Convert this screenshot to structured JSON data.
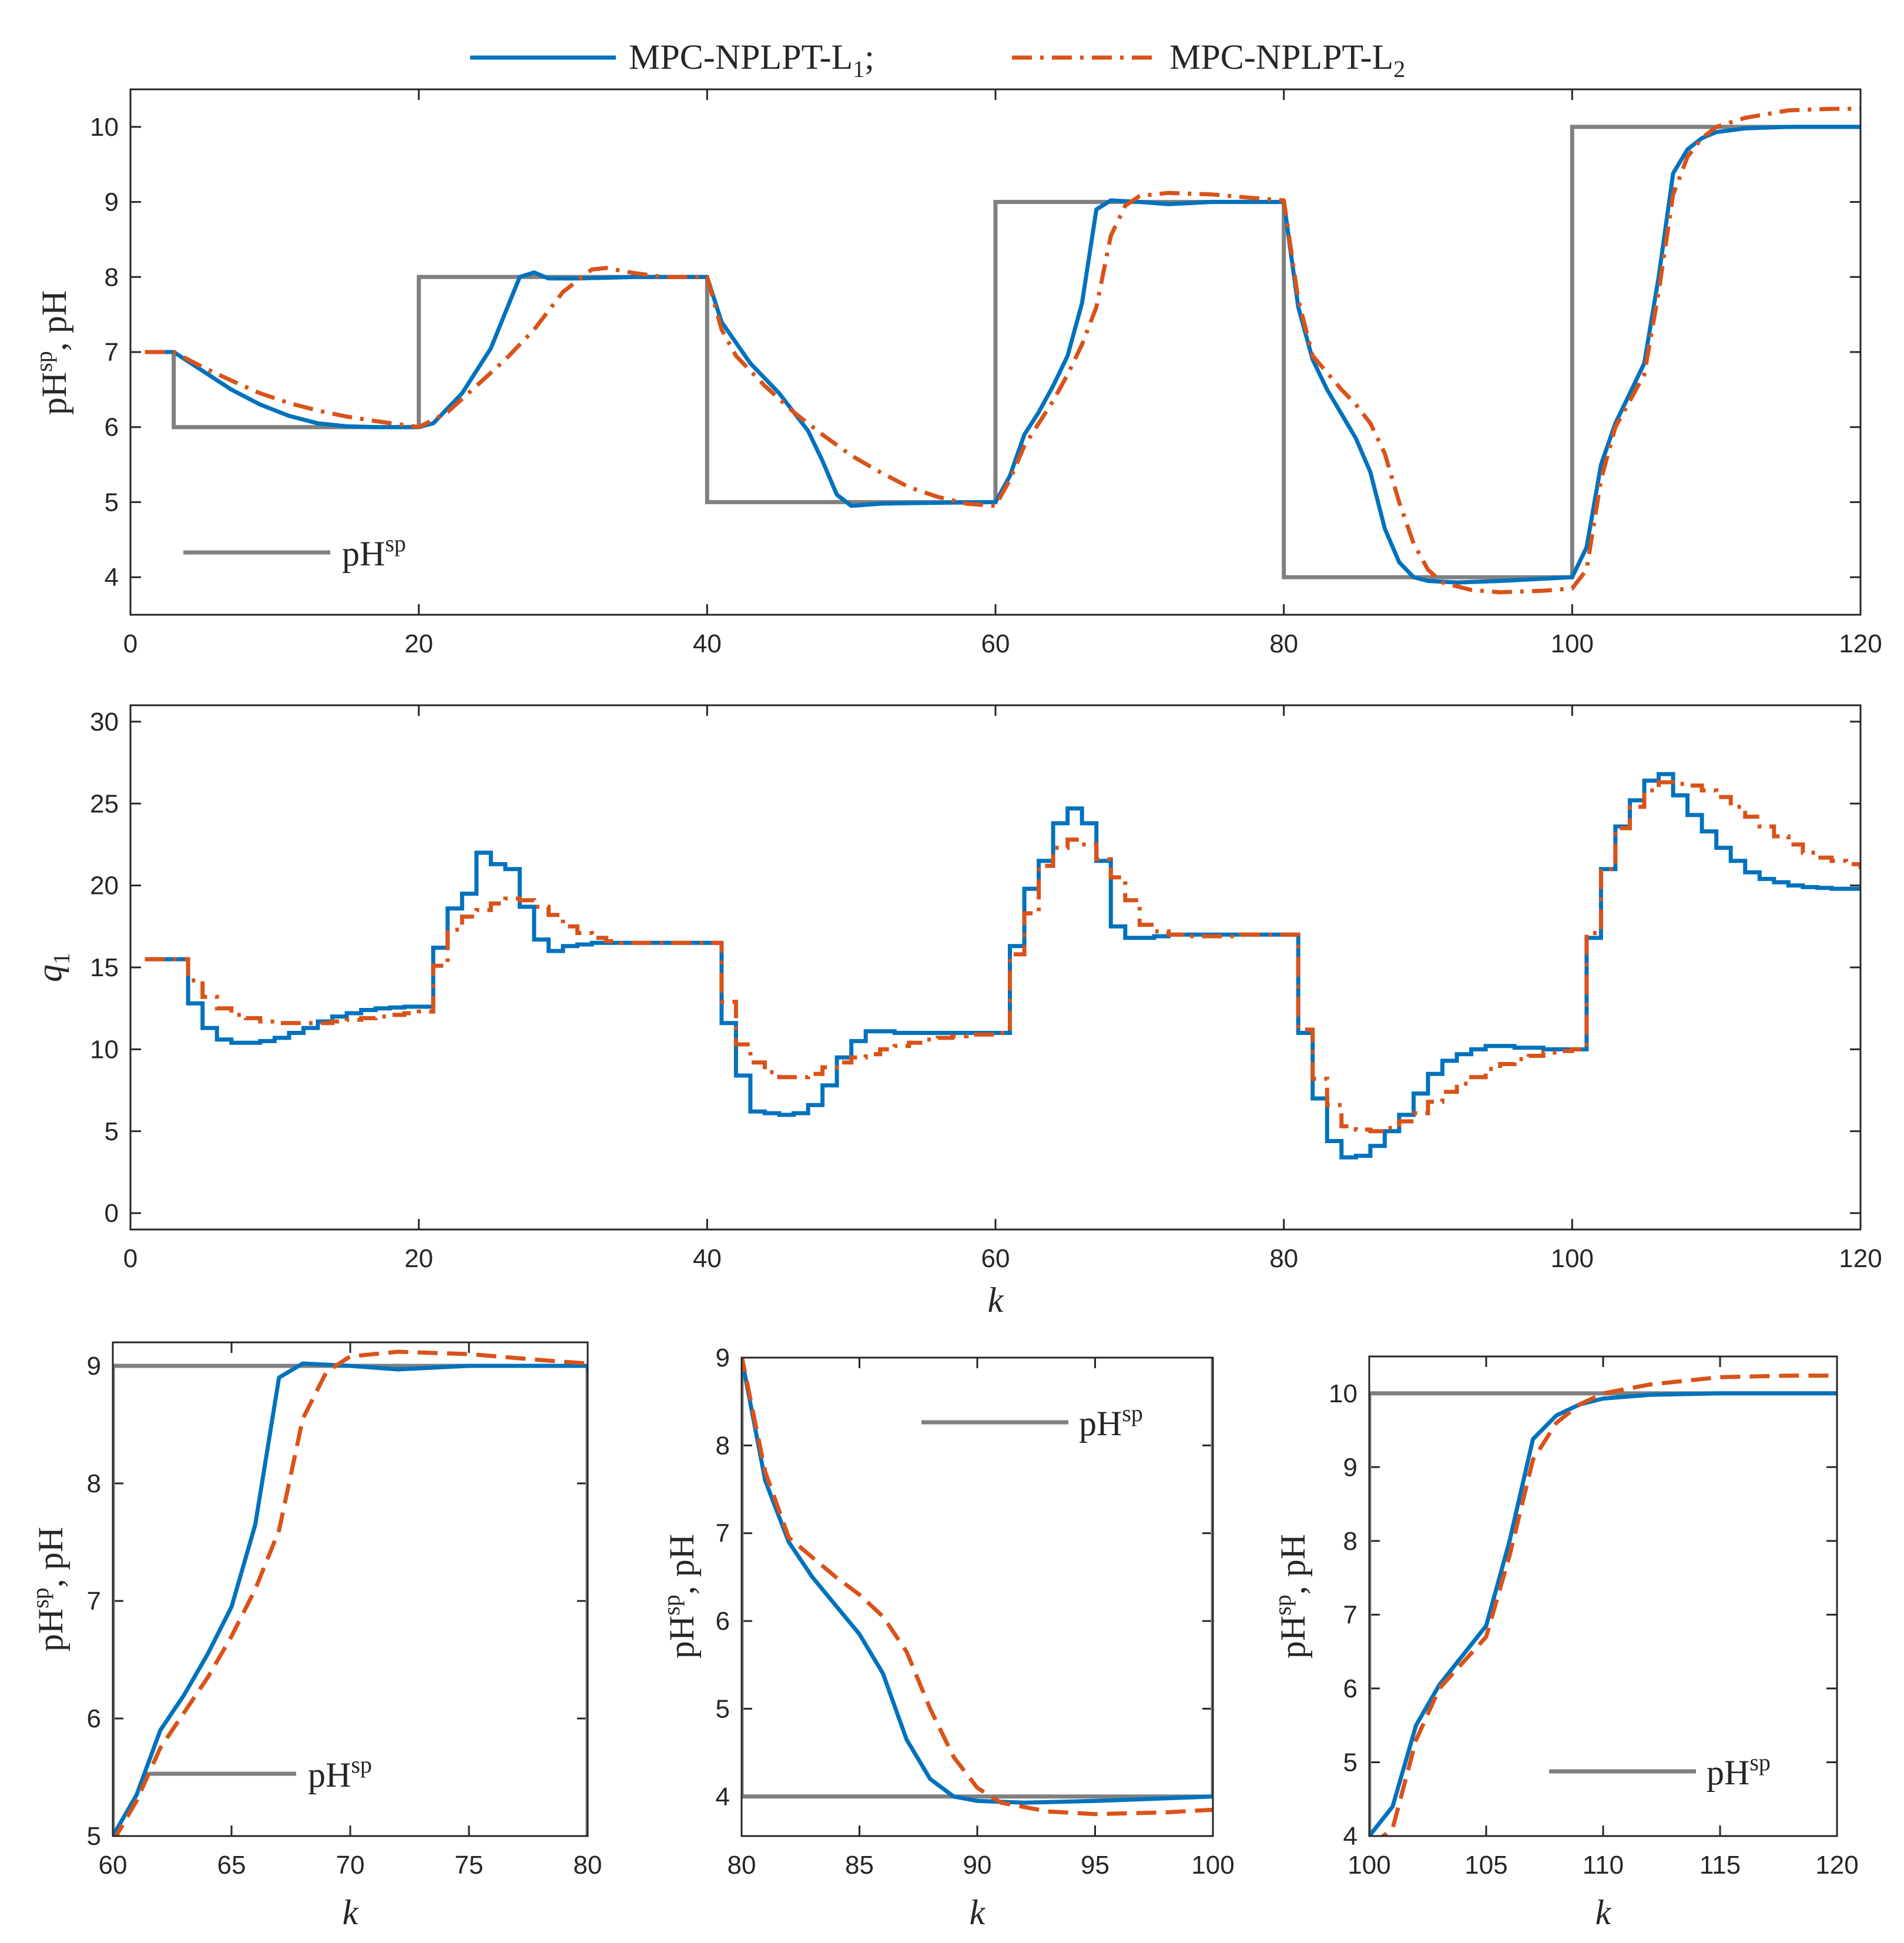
{
  "legend": {
    "series1": {
      "text": "MPC-NPLPT-L",
      "sub": "1",
      "suffix": ";"
    },
    "series2": {
      "text": "MPC-NPLPT-L",
      "sub": "2",
      "suffix": ""
    },
    "sp_label": {
      "text": "pH",
      "sup": "sp"
    }
  },
  "colors": {
    "series1": "#0072BD",
    "series2": "#D95319",
    "setpoint": "#808080"
  },
  "chart_data": [
    {
      "id": "ph_full",
      "type": "line",
      "ylabel": {
        "main": "pH",
        "sup": "sp",
        "rest": ",  pH"
      },
      "xlabel": "",
      "xlim": [
        0,
        120
      ],
      "ylim": [
        3.5,
        10.5
      ],
      "xticks": [
        0,
        20,
        40,
        60,
        80,
        100,
        120
      ],
      "yticks": [
        4,
        5,
        6,
        7,
        8,
        9,
        10
      ],
      "legend_position": "bottom-left",
      "setpoint": [
        [
          1,
          7
        ],
        [
          3,
          7
        ],
        [
          3,
          6
        ],
        [
          20,
          6
        ],
        [
          20,
          8
        ],
        [
          40,
          8
        ],
        [
          40,
          5
        ],
        [
          60,
          5
        ],
        [
          60,
          9
        ],
        [
          80,
          9
        ],
        [
          80,
          4
        ],
        [
          100,
          4
        ],
        [
          100,
          10
        ],
        [
          120,
          10
        ]
      ],
      "series": [
        {
          "name": "MPC-NPLPT-L1",
          "style": "solid",
          "points": [
            [
              1,
              7
            ],
            [
              3,
              7
            ],
            [
              5,
              6.75
            ],
            [
              7,
              6.5
            ],
            [
              9,
              6.3
            ],
            [
              11,
              6.15
            ],
            [
              13,
              6.05
            ],
            [
              15,
              6.01
            ],
            [
              17,
              6.0
            ],
            [
              20,
              6.0
            ],
            [
              21,
              6.05
            ],
            [
              23,
              6.45
            ],
            [
              25,
              7.05
            ],
            [
              27,
              8.0
            ],
            [
              28,
              8.06
            ],
            [
              29,
              7.98
            ],
            [
              31,
              7.98
            ],
            [
              35,
              8.0
            ],
            [
              40,
              8.0
            ],
            [
              41,
              7.4
            ],
            [
              43,
              6.85
            ],
            [
              45,
              6.45
            ],
            [
              47,
              5.95
            ],
            [
              48,
              5.55
            ],
            [
              49,
              5.1
            ],
            [
              50,
              4.95
            ],
            [
              52,
              4.98
            ],
            [
              55,
              4.99
            ],
            [
              60,
              5.0
            ],
            [
              61,
              5.35
            ],
            [
              62,
              5.9
            ],
            [
              63,
              6.2
            ],
            [
              64,
              6.55
            ],
            [
              65,
              6.95
            ],
            [
              66,
              7.65
            ],
            [
              67,
              8.9
            ],
            [
              68,
              9.02
            ],
            [
              70,
              9.0
            ],
            [
              72,
              8.97
            ],
            [
              75,
              9.0
            ],
            [
              80,
              9.0
            ],
            [
              81,
              7.6
            ],
            [
              82,
              6.9
            ],
            [
              83,
              6.5
            ],
            [
              85,
              5.85
            ],
            [
              86,
              5.4
            ],
            [
              87,
              4.65
            ],
            [
              88,
              4.2
            ],
            [
              89,
              4.0
            ],
            [
              90,
              3.95
            ],
            [
              92,
              3.93
            ],
            [
              95,
              3.95
            ],
            [
              100,
              4.0
            ],
            [
              101,
              4.4
            ],
            [
              102,
              5.5
            ],
            [
              103,
              6.05
            ],
            [
              105,
              6.85
            ],
            [
              106,
              8.0
            ],
            [
              107,
              9.38
            ],
            [
              108,
              9.7
            ],
            [
              109,
              9.85
            ],
            [
              110,
              9.93
            ],
            [
              112,
              9.98
            ],
            [
              115,
              10.0
            ],
            [
              120,
              10.0
            ]
          ]
        },
        {
          "name": "MPC-NPLPT-L2",
          "style": "dashdot",
          "points": [
            [
              1,
              7
            ],
            [
              3,
              7
            ],
            [
              5,
              6.8
            ],
            [
              7,
              6.62
            ],
            [
              9,
              6.45
            ],
            [
              11,
              6.32
            ],
            [
              13,
              6.22
            ],
            [
              15,
              6.14
            ],
            [
              17,
              6.08
            ],
            [
              20,
              6.0
            ],
            [
              22,
              6.2
            ],
            [
              24,
              6.55
            ],
            [
              26,
              6.9
            ],
            [
              28,
              7.3
            ],
            [
              30,
              7.8
            ],
            [
              32,
              8.1
            ],
            [
              33,
              8.12
            ],
            [
              35,
              8.05
            ],
            [
              37,
              8.0
            ],
            [
              40,
              8.0
            ],
            [
              41,
              7.3
            ],
            [
              42,
              6.95
            ],
            [
              44,
              6.55
            ],
            [
              46,
              6.2
            ],
            [
              48,
              5.9
            ],
            [
              50,
              5.62
            ],
            [
              52,
              5.4
            ],
            [
              54,
              5.2
            ],
            [
              56,
              5.07
            ],
            [
              58,
              4.98
            ],
            [
              60,
              4.95
            ],
            [
              61,
              5.3
            ],
            [
              62,
              5.75
            ],
            [
              64,
              6.35
            ],
            [
              65,
              6.7
            ],
            [
              66,
              7.1
            ],
            [
              67,
              7.6
            ],
            [
              68,
              8.55
            ],
            [
              69,
              8.95
            ],
            [
              70,
              9.08
            ],
            [
              72,
              9.12
            ],
            [
              75,
              9.1
            ],
            [
              78,
              9.05
            ],
            [
              80,
              9.02
            ],
            [
              81,
              7.7
            ],
            [
              82,
              6.95
            ],
            [
              84,
              6.5
            ],
            [
              85,
              6.3
            ],
            [
              86,
              6.05
            ],
            [
              87,
              5.65
            ],
            [
              88,
              5.0
            ],
            [
              89,
              4.45
            ],
            [
              90,
              4.1
            ],
            [
              91,
              3.93
            ],
            [
              93,
              3.83
            ],
            [
              95,
              3.8
            ],
            [
              98,
              3.82
            ],
            [
              100,
              3.85
            ],
            [
              101,
              4.1
            ],
            [
              102,
              5.3
            ],
            [
              103,
              6.0
            ],
            [
              105,
              6.7
            ],
            [
              106,
              7.8
            ],
            [
              107,
              9.1
            ],
            [
              108,
              9.6
            ],
            [
              109,
              9.85
            ],
            [
              110,
              10.0
            ],
            [
              112,
              10.12
            ],
            [
              115,
              10.22
            ],
            [
              118,
              10.24
            ],
            [
              120,
              10.24
            ]
          ]
        }
      ]
    },
    {
      "id": "q1_full",
      "type": "line",
      "ylabel": {
        "main": "q",
        "sub": "1"
      },
      "xlabel": "k",
      "xlim": [
        0,
        120
      ],
      "ylim": [
        -1,
        31
      ],
      "xticks": [
        0,
        20,
        40,
        60,
        80,
        100,
        120
      ],
      "yticks": [
        0,
        5,
        10,
        15,
        20,
        25,
        30
      ],
      "legend_position": "none",
      "series": [
        {
          "name": "MPC-NPLPT-L1",
          "style": "solid-stairs",
          "values": [
            15.5,
            15.5,
            15.5,
            12.8,
            11.3,
            10.6,
            10.4,
            10.4,
            10.5,
            10.7,
            11.0,
            11.3,
            11.7,
            12.0,
            12.2,
            12.4,
            12.5,
            12.55,
            12.6,
            12.6,
            16.2,
            18.6,
            19.5,
            22.0,
            21.3,
            21.0,
            18.7,
            16.7,
            16.0,
            16.3,
            16.4,
            16.5,
            16.5,
            16.5,
            16.5,
            16.5,
            16.5,
            16.5,
            16.5,
            16.5,
            11.6,
            8.4,
            6.2,
            6.1,
            6.0,
            6.1,
            6.6,
            7.8,
            9.5,
            10.5,
            11.1,
            11.1,
            11.0,
            11.0,
            11.0,
            11.0,
            11.0,
            11.0,
            11.0,
            11.0,
            16.3,
            19.8,
            21.5,
            23.8,
            24.7,
            23.8,
            21.5,
            17.5,
            16.8,
            16.8,
            16.9,
            17.0,
            17.0,
            17.0,
            17.0,
            17.0,
            17.0,
            17.0,
            17.0,
            17.0,
            11.0,
            7.0,
            4.4,
            3.4,
            3.5,
            4.1,
            5.0,
            6.0,
            7.3,
            8.5,
            9.3,
            9.7,
            10.0,
            10.2,
            10.2,
            10.1,
            10.1,
            10.0,
            10.0,
            10.0,
            16.8,
            21.0,
            23.6,
            25.2,
            26.4,
            26.8,
            25.5,
            24.3,
            23.3,
            22.3,
            21.5,
            20.8,
            20.4,
            20.2,
            20.0,
            19.9,
            19.85,
            19.8,
            19.8,
            19.8
          ]
        },
        {
          "name": "MPC-NPLPT-L2",
          "style": "dashdot-stairs",
          "values": [
            15.5,
            15.5,
            15.5,
            14.2,
            13.2,
            12.5,
            12.1,
            11.9,
            11.7,
            11.6,
            11.6,
            11.6,
            11.6,
            11.7,
            11.8,
            11.9,
            12.0,
            12.1,
            12.2,
            12.3,
            15.1,
            17.3,
            18.1,
            18.5,
            18.9,
            19.2,
            19.1,
            18.7,
            18.2,
            17.5,
            17.1,
            16.8,
            16.6,
            16.5,
            16.5,
            16.5,
            16.5,
            16.5,
            16.5,
            16.5,
            12.9,
            10.3,
            9.2,
            8.6,
            8.3,
            8.3,
            8.5,
            8.9,
            9.2,
            9.5,
            9.7,
            10.0,
            10.2,
            10.4,
            10.6,
            10.7,
            10.8,
            10.9,
            10.9,
            11.0,
            15.8,
            18.3,
            21.2,
            22.3,
            22.8,
            22.5,
            21.6,
            20.5,
            19.1,
            17.6,
            17.2,
            17.0,
            16.9,
            16.9,
            16.9,
            16.9,
            17.0,
            17.0,
            17.0,
            17.0,
            11.2,
            8.2,
            6.6,
            5.3,
            5.1,
            5.0,
            5.2,
            5.6,
            6.1,
            6.8,
            7.4,
            7.9,
            8.3,
            8.8,
            9.1,
            9.4,
            9.6,
            9.8,
            9.9,
            10.0,
            17.1,
            21.0,
            23.5,
            24.8,
            25.8,
            26.3,
            26.2,
            26.1,
            25.8,
            25.4,
            24.8,
            24.2,
            23.6,
            23.0,
            22.5,
            22.0,
            21.7,
            21.5,
            21.3,
            21.0
          ]
        }
      ]
    },
    {
      "id": "zoom1",
      "type": "line",
      "ylabel": {
        "main": "pH",
        "sup": "sp",
        "rest": ",  pH"
      },
      "xlabel": "k",
      "xlim": [
        60,
        80
      ],
      "ylim": [
        5,
        9.2
      ],
      "xticks": [
        60,
        65,
        70,
        75,
        80
      ],
      "yticks": [
        5,
        6,
        7,
        8,
        9
      ],
      "legend_position": "bottom-right",
      "setpoint": [
        [
          60,
          5
        ],
        [
          60,
          9
        ],
        [
          80,
          9
        ],
        [
          80,
          5
        ]
      ],
      "series_source": "ph_full",
      "series_style": [
        "solid",
        "dashed"
      ]
    },
    {
      "id": "zoom2",
      "type": "line",
      "ylabel": {
        "main": "pH",
        "sup": "sp",
        "rest": ",  pH"
      },
      "xlabel": "k",
      "xlim": [
        80,
        100
      ],
      "ylim": [
        3.55,
        9
      ],
      "xticks": [
        80,
        85,
        90,
        95,
        100
      ],
      "yticks": [
        4,
        5,
        6,
        7,
        8,
        9
      ],
      "legend_position": "top-right",
      "setpoint": [
        [
          80,
          9
        ],
        [
          80,
          4
        ],
        [
          100,
          4
        ],
        [
          100,
          9
        ]
      ],
      "series_source": "ph_full",
      "series_style": [
        "solid",
        "dashed"
      ]
    },
    {
      "id": "zoom3",
      "type": "line",
      "ylabel": {
        "main": "pH",
        "sup": "sp",
        "rest": ",  pH"
      },
      "xlabel": "k",
      "xlim": [
        100,
        120
      ],
      "ylim": [
        4,
        10.5
      ],
      "xticks": [
        100,
        105,
        110,
        115,
        120
      ],
      "yticks": [
        4,
        5,
        6,
        7,
        8,
        9,
        10
      ],
      "legend_position": "bottom-right",
      "setpoint": [
        [
          100,
          4
        ],
        [
          100,
          10
        ],
        [
          120,
          10
        ]
      ],
      "series_source": "ph_full",
      "series_style": [
        "solid",
        "dashed"
      ]
    }
  ]
}
